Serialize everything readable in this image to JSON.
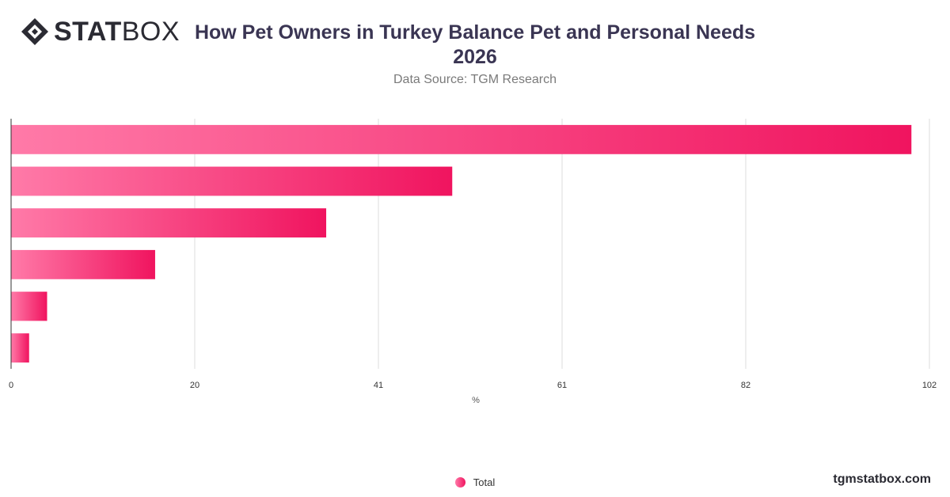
{
  "brand": {
    "logo_bold": "STAT",
    "logo_light": "BOX",
    "footer": "tgmstatbox.com"
  },
  "header": {
    "title": "How Pet Owners in Turkey Balance Pet and Personal Needs 2026",
    "subtitle": "Data Source: TGM Research"
  },
  "colors": {
    "bar_start": "#ff7aa8",
    "bar_end": "#f0145f",
    "grid": "#dddddd",
    "axis": "#333333"
  },
  "chart_data": {
    "type": "bar",
    "orientation": "horizontal",
    "title": "How Pet Owners in Turkey Balance Pet and Personal Needs 2026",
    "xlabel": "%",
    "ylabel": "",
    "xlim": [
      0,
      102
    ],
    "x_ticks": [
      "0",
      "20",
      "41",
      "61",
      "82",
      "102"
    ],
    "categories": [
      "",
      "",
      "",
      "",
      "",
      ""
    ],
    "series": [
      {
        "name": "Total",
        "values": [
          100,
          49,
          35,
          16,
          4,
          2
        ]
      }
    ],
    "grid": true,
    "legend": "bottom-center"
  }
}
